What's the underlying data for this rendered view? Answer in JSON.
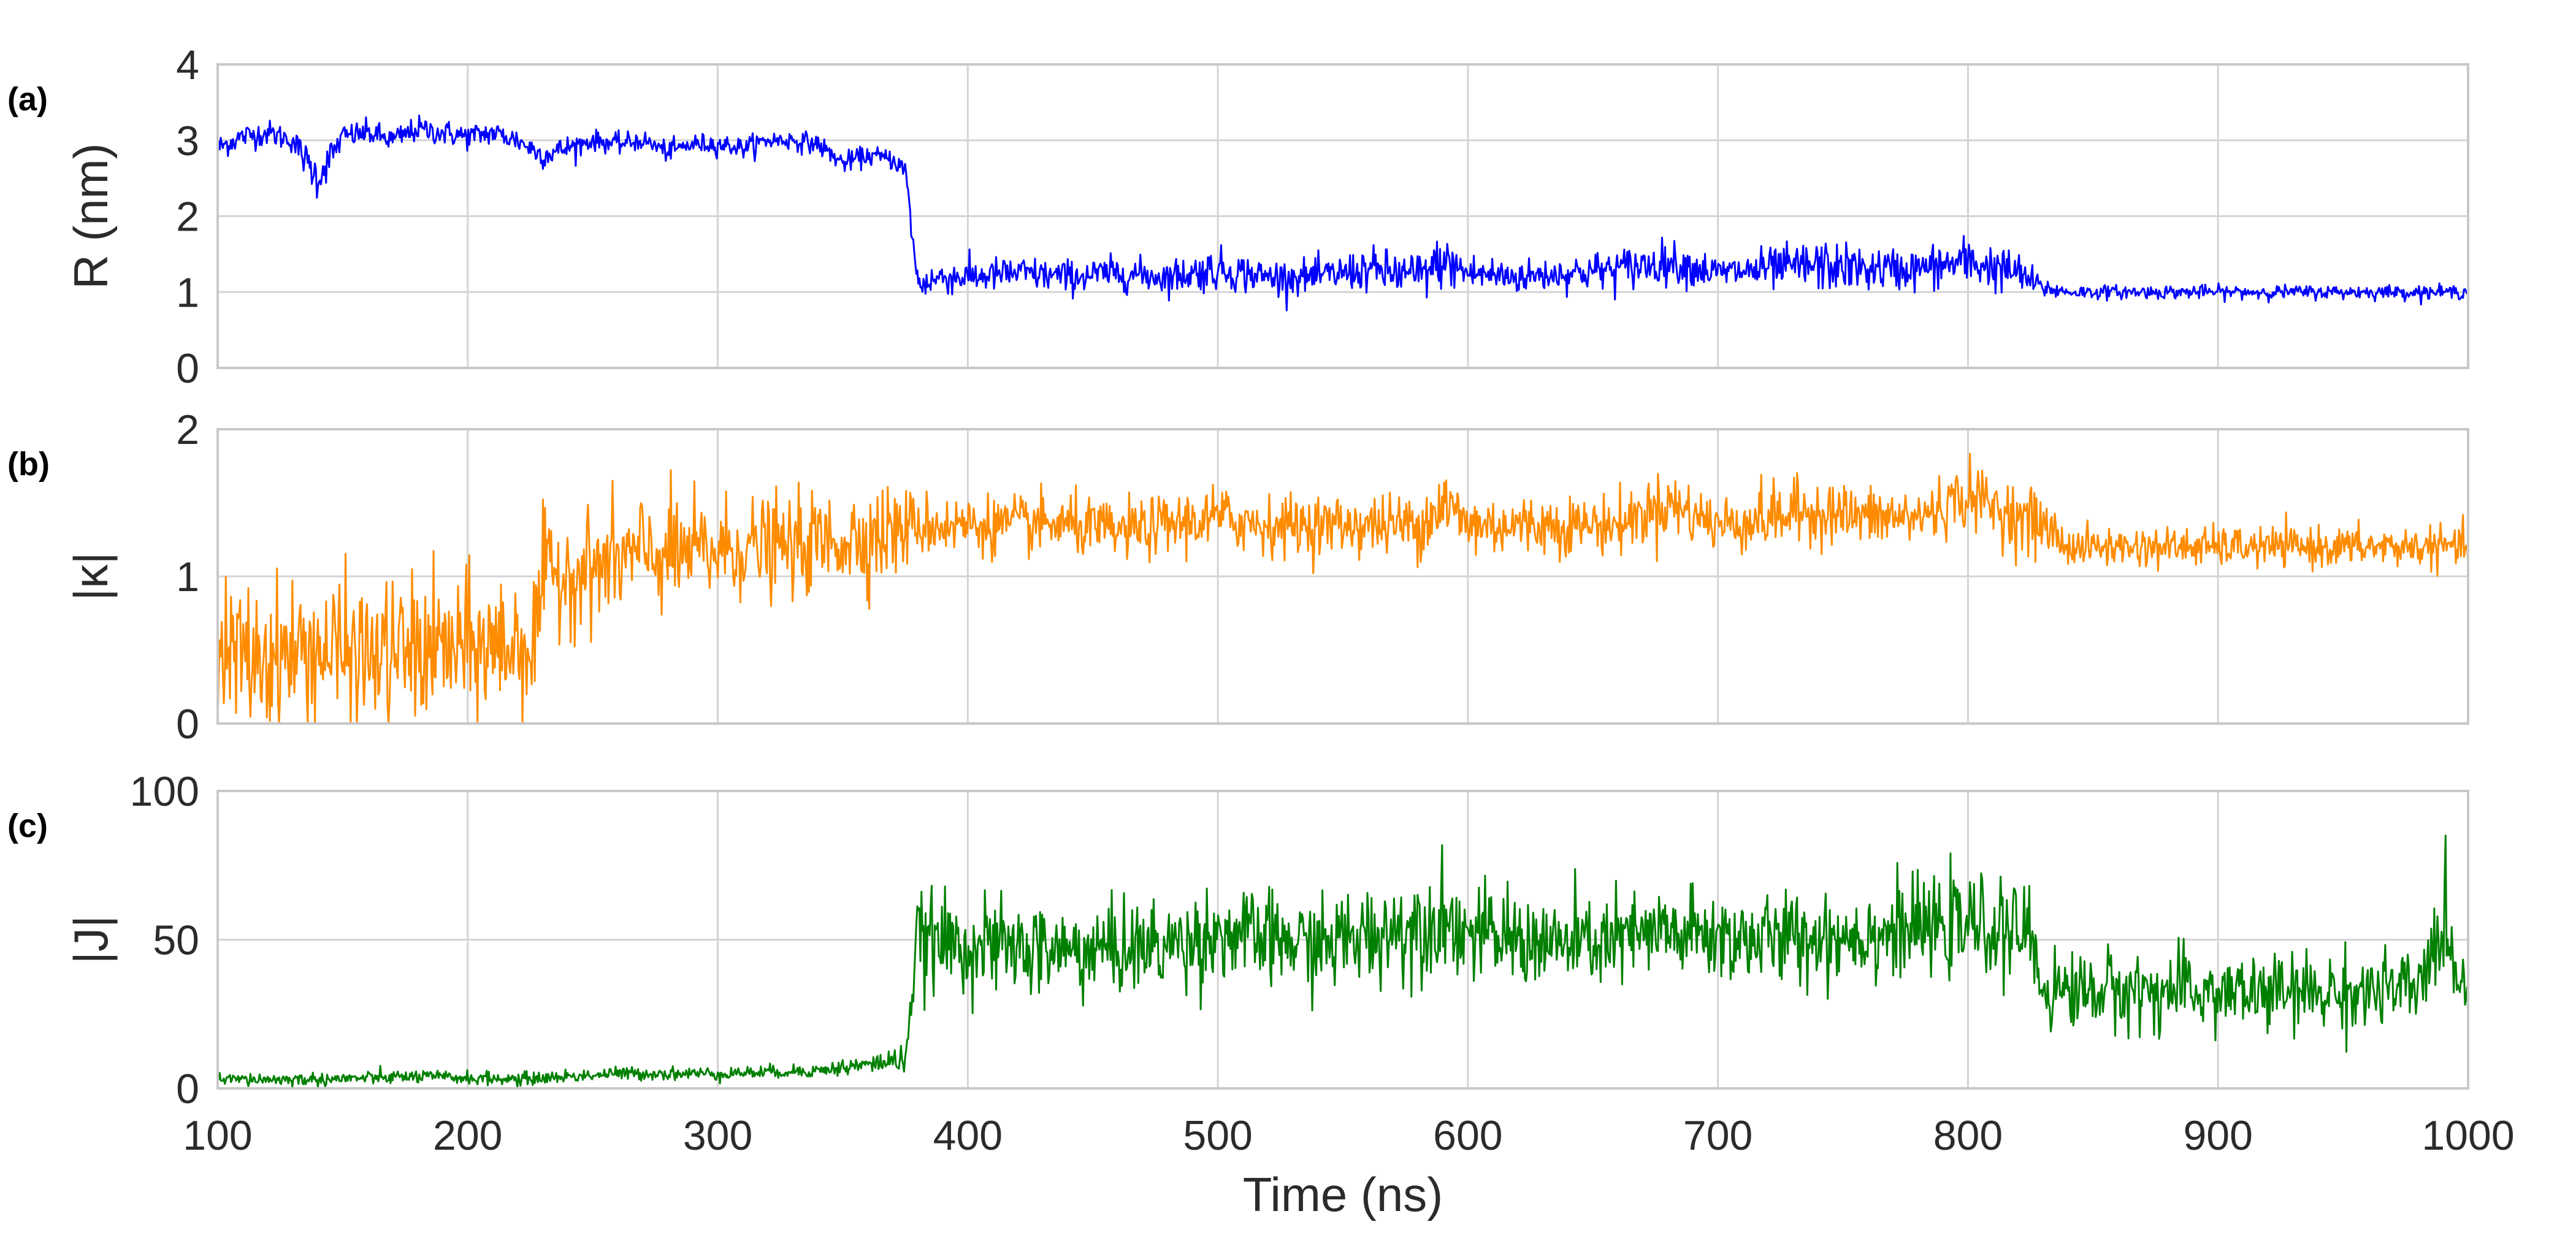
{
  "chart_data": [
    {
      "type": "line",
      "panel_label": "(a)",
      "ylabel": "R (nm)",
      "xlim": [
        100,
        1000
      ],
      "ylim": [
        0,
        4
      ],
      "y_ticks": [
        "0",
        "1",
        "2",
        "3",
        "4"
      ],
      "grid": true,
      "color": "#0000ff",
      "series": [
        {
          "x": [
            100,
            110,
            120,
            130,
            140,
            150,
            160,
            170,
            180,
            190,
            200,
            210,
            220,
            230,
            240,
            250,
            260,
            270,
            280,
            290,
            300,
            310,
            320,
            330,
            340,
            350,
            360,
            370,
            375,
            380,
            390,
            400,
            420,
            440,
            460,
            480,
            500,
            520,
            540,
            560,
            580,
            590,
            600,
            620,
            640,
            660,
            680,
            700,
            720,
            740,
            760,
            780,
            800,
            820,
            830,
            840,
            860,
            880,
            900,
            920,
            940,
            960,
            980,
            1000
          ],
          "y": [
            2.9,
            3.05,
            3.1,
            3.0,
            2.5,
            3.05,
            3.1,
            3.0,
            3.15,
            3.1,
            3.05,
            3.1,
            3.0,
            2.8,
            2.9,
            3.0,
            2.95,
            3.0,
            2.85,
            2.95,
            2.95,
            2.9,
            3.0,
            3.0,
            2.95,
            2.7,
            2.8,
            2.75,
            2.6,
            1.1,
            1.2,
            1.2,
            1.25,
            1.2,
            1.25,
            1.2,
            1.3,
            1.2,
            1.2,
            1.3,
            1.2,
            1.4,
            1.25,
            1.2,
            1.25,
            1.3,
            1.4,
            1.25,
            1.3,
            1.35,
            1.3,
            1.3,
            1.4,
            1.25,
            1.05,
            1.0,
            1.0,
            1.0,
            1.0,
            1.0,
            1.0,
            1.0,
            1.0,
            1.0
          ],
          "noise": [
            0.15,
            0.15,
            0.15,
            0.15,
            0.25,
            0.15,
            0.15,
            0.15,
            0.15,
            0.15,
            0.15,
            0.15,
            0.15,
            0.15,
            0.15,
            0.12,
            0.12,
            0.12,
            0.12,
            0.12,
            0.12,
            0.12,
            0.12,
            0.12,
            0.12,
            0.12,
            0.12,
            0.12,
            0.15,
            0.2,
            0.2,
            0.2,
            0.2,
            0.2,
            0.2,
            0.2,
            0.25,
            0.2,
            0.2,
            0.25,
            0.3,
            0.3,
            0.25,
            0.2,
            0.2,
            0.25,
            0.25,
            0.2,
            0.25,
            0.3,
            0.25,
            0.25,
            0.3,
            0.25,
            0.12,
            0.08,
            0.08,
            0.08,
            0.08,
            0.08,
            0.08,
            0.08,
            0.08,
            0.08
          ]
        }
      ]
    },
    {
      "type": "line",
      "panel_label": "(b)",
      "ylabel": "|κ|",
      "xlim": [
        100,
        1000
      ],
      "ylim": [
        0,
        2
      ],
      "y_ticks": [
        "0",
        "1",
        "2"
      ],
      "grid": true,
      "color": "#ff8c00",
      "series": [
        {
          "x": [
            100,
            120,
            140,
            160,
            180,
            200,
            220,
            227,
            230,
            250,
            270,
            290,
            310,
            330,
            350,
            370,
            380,
            400,
            420,
            440,
            460,
            480,
            500,
            520,
            540,
            560,
            580,
            590,
            600,
            620,
            640,
            660,
            680,
            700,
            720,
            740,
            760,
            780,
            800,
            820,
            830,
            840,
            860,
            880,
            900,
            920,
            940,
            960,
            980,
            1000
          ],
          "y": [
            0.45,
            0.45,
            0.5,
            0.45,
            0.5,
            0.5,
            0.55,
            0.55,
            1.0,
            1.05,
            1.15,
            1.15,
            1.2,
            1.2,
            1.25,
            1.3,
            1.35,
            1.35,
            1.35,
            1.35,
            1.3,
            1.35,
            1.4,
            1.35,
            1.35,
            1.35,
            1.35,
            1.5,
            1.35,
            1.35,
            1.35,
            1.35,
            1.5,
            1.35,
            1.4,
            1.45,
            1.4,
            1.4,
            1.55,
            1.4,
            1.35,
            1.2,
            1.2,
            1.2,
            1.2,
            1.2,
            1.2,
            1.2,
            1.2,
            1.2
          ],
          "noise": [
            0.45,
            0.45,
            0.45,
            0.45,
            0.45,
            0.45,
            0.45,
            0.45,
            0.35,
            0.35,
            0.35,
            0.35,
            0.3,
            0.3,
            0.3,
            0.3,
            0.2,
            0.18,
            0.18,
            0.18,
            0.18,
            0.18,
            0.2,
            0.18,
            0.18,
            0.18,
            0.2,
            0.25,
            0.2,
            0.18,
            0.18,
            0.18,
            0.2,
            0.18,
            0.2,
            0.2,
            0.18,
            0.18,
            0.2,
            0.2,
            0.2,
            0.12,
            0.12,
            0.12,
            0.12,
            0.12,
            0.12,
            0.12,
            0.12,
            0.12
          ]
        }
      ]
    },
    {
      "type": "line",
      "panel_label": "(c)",
      "ylabel": "|J|",
      "xlabel": "Time (ns)",
      "xlim": [
        100,
        1000
      ],
      "ylim": [
        0,
        100
      ],
      "x_ticks": [
        "100",
        "200",
        "300",
        "400",
        "500",
        "600",
        "700",
        "800",
        "900",
        "1000"
      ],
      "y_ticks": [
        "0",
        "50",
        "100"
      ],
      "grid": true,
      "color": "#008000",
      "series": [
        {
          "x": [
            100,
            140,
            180,
            220,
            260,
            300,
            340,
            360,
            375,
            380,
            400,
            440,
            480,
            500,
            540,
            580,
            590,
            600,
            640,
            680,
            720,
            760,
            800,
            820,
            825,
            830,
            860,
            900,
            940,
            980,
            990,
            1000
          ],
          "y": [
            3,
            3,
            4,
            3,
            5,
            5,
            6,
            8,
            10,
            50,
            48,
            46,
            48,
            52,
            48,
            55,
            58,
            52,
            48,
            52,
            50,
            52,
            55,
            52,
            52,
            33,
            33,
            32,
            32,
            33,
            55,
            30
          ],
          "noise": [
            2,
            2,
            2,
            2,
            2,
            2,
            2,
            3,
            4,
            14,
            14,
            14,
            14,
            14,
            14,
            16,
            16,
            14,
            14,
            14,
            14,
            14,
            14,
            14,
            14,
            12,
            12,
            12,
            12,
            12,
            14,
            12
          ]
        }
      ]
    }
  ]
}
